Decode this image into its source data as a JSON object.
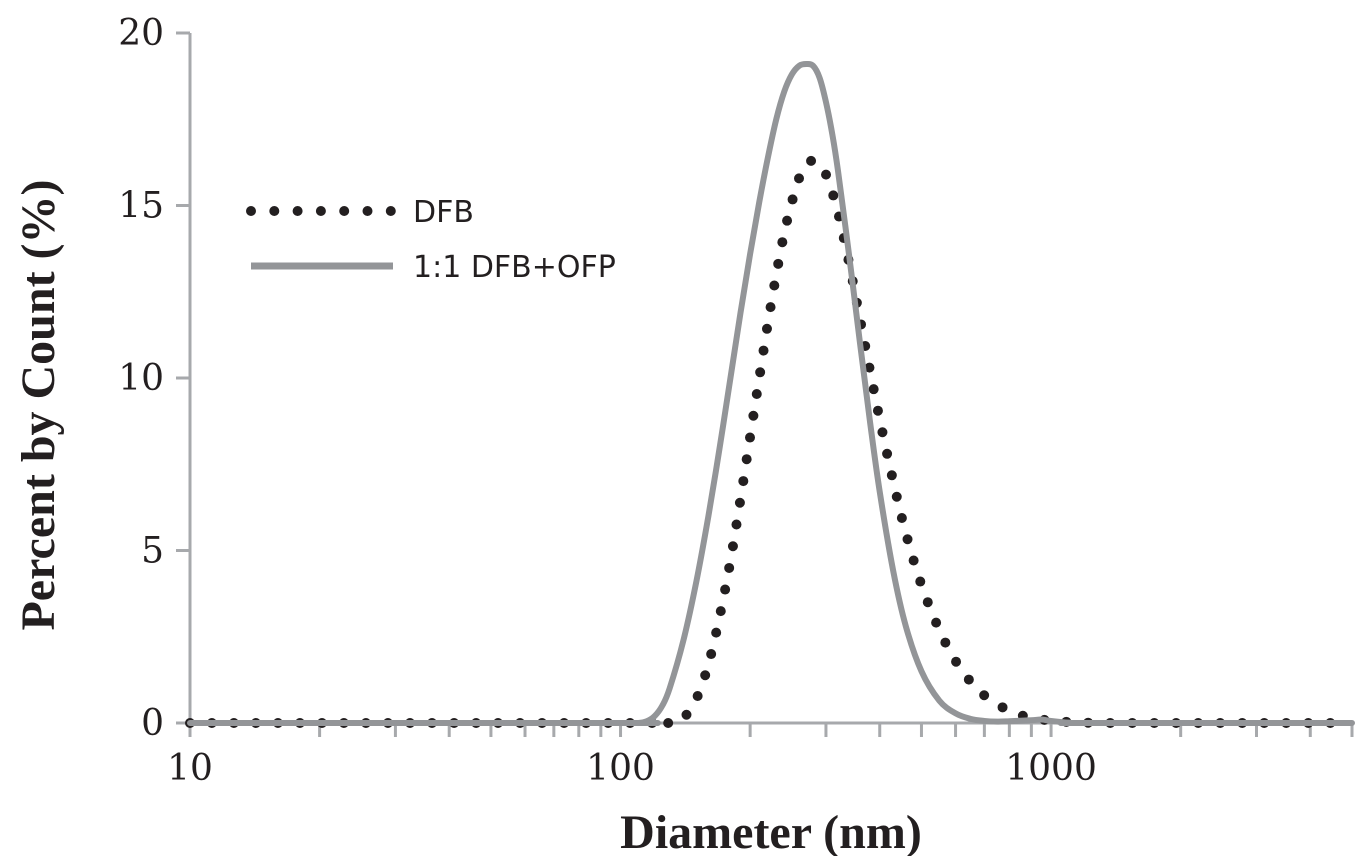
{
  "chart_data": {
    "type": "line",
    "title": "",
    "xlabel": "Diameter (nm)",
    "ylabel": "Percent by Count (%)",
    "xscale": "log",
    "xlim": [
      10,
      5000
    ],
    "ylim": [
      0,
      20
    ],
    "yticks": [
      0,
      5,
      10,
      15,
      20
    ],
    "ytick_labels": [
      "0",
      "5",
      "10",
      "15",
      "20"
    ],
    "xticks": [
      10,
      100,
      1000
    ],
    "xtick_labels": [
      "10",
      "100",
      "1000"
    ],
    "grid": false,
    "legend_position": "upper-left",
    "series": [
      {
        "name": "DFB",
        "style": "dotted",
        "color": "#231f20",
        "x": [
          10,
          100,
          130,
          140,
          150,
          160,
          170,
          180,
          190,
          200,
          210,
          220,
          230,
          240,
          250,
          260,
          270,
          280,
          290,
          300,
          310,
          320,
          340,
          360,
          380,
          400,
          430,
          460,
          500,
          550,
          600,
          650,
          700,
          800,
          900,
          1000,
          1100,
          1200,
          1400,
          1700,
          2000,
          3000,
          5000
        ],
        "y": [
          0,
          0,
          0,
          0.15,
          0.7,
          1.7,
          3.1,
          4.7,
          6.5,
          8.3,
          10.0,
          11.6,
          13.0,
          14.2,
          15.1,
          15.8,
          16.2,
          16.3,
          16.2,
          15.9,
          15.4,
          14.8,
          13.3,
          11.7,
          10.2,
          8.8,
          7.0,
          5.5,
          4.0,
          2.7,
          1.8,
          1.2,
          0.8,
          0.35,
          0.15,
          0.07,
          0.03,
          0.01,
          0,
          0,
          0,
          0,
          0
        ]
      },
      {
        "name": "1:1 DFB+OFP",
        "style": "solid",
        "color": "#939598",
        "x": [
          10,
          100,
          110,
          115,
          120,
          125,
          130,
          140,
          150,
          160,
          170,
          180,
          190,
          200,
          210,
          220,
          230,
          240,
          250,
          260,
          270,
          280,
          290,
          300,
          310,
          320,
          340,
          360,
          380,
          400,
          430,
          460,
          500,
          550,
          600,
          650,
          700,
          750,
          800,
          900,
          950,
          1000,
          1100,
          1200,
          5000
        ],
        "y": [
          0,
          0,
          0,
          0.05,
          0.2,
          0.5,
          1.0,
          2.4,
          4.1,
          6.0,
          8.0,
          10.0,
          11.9,
          13.6,
          15.1,
          16.4,
          17.5,
          18.3,
          18.8,
          19.05,
          19.1,
          19.05,
          18.7,
          18.0,
          17.1,
          16.0,
          13.5,
          11.0,
          8.7,
          6.7,
          4.4,
          2.8,
          1.5,
          0.65,
          0.28,
          0.12,
          0.06,
          0.04,
          0.05,
          0.08,
          0.1,
          0.06,
          0.01,
          0,
          0
        ]
      }
    ]
  }
}
